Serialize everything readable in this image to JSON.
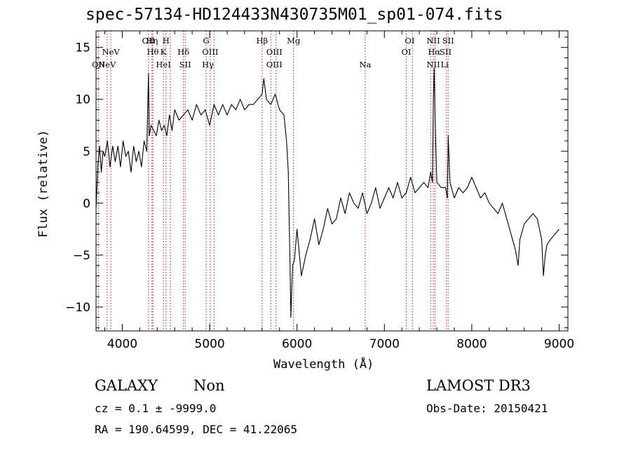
{
  "chart_data": {
    "type": "line",
    "title": "spec-57134-HD124433N430735M01_sp01-074.fits",
    "xlabel": "Wavelength (Å)",
    "ylabel": "Flux (relative)",
    "xlim": [
      3700,
      9100
    ],
    "ylim": [
      -12.3,
      16.6
    ],
    "xticks": [
      4000,
      5000,
      6000,
      7000,
      8000,
      9000
    ],
    "yticks": [
      -10,
      -5,
      0,
      5,
      10,
      15
    ],
    "grid": false,
    "series": [
      {
        "name": "spectrum",
        "color": "#000000",
        "x": [
          3700,
          3720,
          3740,
          3760,
          3780,
          3800,
          3830,
          3860,
          3890,
          3920,
          3950,
          3980,
          4010,
          4040,
          4070,
          4100,
          4130,
          4160,
          4190,
          4220,
          4250,
          4280,
          4300,
          4310,
          4330,
          4360,
          4390,
          4420,
          4450,
          4480,
          4510,
          4540,
          4570,
          4600,
          4650,
          4700,
          4750,
          4800,
          4850,
          4900,
          4950,
          5000,
          5050,
          5100,
          5150,
          5200,
          5250,
          5300,
          5350,
          5400,
          5450,
          5500,
          5550,
          5600,
          5620,
          5650,
          5700,
          5750,
          5800,
          5850,
          5880,
          5900,
          5910,
          5920,
          5930,
          5940,
          5950,
          5970,
          6000,
          6050,
          6100,
          6150,
          6200,
          6250,
          6300,
          6350,
          6400,
          6450,
          6500,
          6550,
          6600,
          6650,
          6700,
          6750,
          6800,
          6850,
          6900,
          6950,
          7000,
          7050,
          7100,
          7150,
          7200,
          7250,
          7300,
          7350,
          7400,
          7450,
          7500,
          7530,
          7550,
          7560,
          7570,
          7580,
          7600,
          7650,
          7700,
          7720,
          7730,
          7750,
          7800,
          7850,
          7900,
          7950,
          8000,
          8050,
          8100,
          8150,
          8200,
          8250,
          8300,
          8350,
          8400,
          8450,
          8500,
          8530,
          8550,
          8600,
          8650,
          8700,
          8750,
          8800,
          8820,
          8840,
          8860,
          8900,
          8950,
          9000
        ],
        "y": [
          -0.5,
          3.5,
          5.5,
          3.0,
          5.0,
          4.5,
          6.0,
          3.5,
          5.5,
          4.0,
          5.5,
          3.5,
          6.0,
          4.5,
          5.0,
          3.0,
          5.5,
          4.0,
          5.0,
          3.5,
          6.0,
          5.0,
          12.5,
          6.5,
          7.5,
          7.0,
          6.5,
          8.0,
          7.0,
          7.5,
          6.5,
          8.5,
          7.0,
          9.0,
          8.0,
          8.5,
          9.0,
          8.0,
          9.5,
          8.5,
          9.0,
          7.5,
          9.5,
          8.5,
          9.5,
          8.5,
          9.5,
          9.0,
          10.0,
          9.0,
          9.5,
          9.5,
          10.0,
          10.5,
          12.0,
          10.0,
          9.5,
          10.5,
          9.0,
          8.5,
          6.0,
          3.0,
          -1.5,
          -6.0,
          -11.0,
          -8.0,
          -6.0,
          -5.5,
          -2.5,
          -7.0,
          -5.0,
          -3.5,
          -1.5,
          -4.0,
          -2.5,
          -0.5,
          -2.0,
          -1.5,
          0.5,
          -1.0,
          1.0,
          0.0,
          -0.5,
          1.0,
          -1.0,
          0.0,
          1.5,
          -0.5,
          0.5,
          1.5,
          0.5,
          2.0,
          0.5,
          1.0,
          2.5,
          1.0,
          1.5,
          2.0,
          1.5,
          3.0,
          2.0,
          10.0,
          13.0,
          8.0,
          2.0,
          1.5,
          1.5,
          0.5,
          6.5,
          2.0,
          0.5,
          1.5,
          1.0,
          1.5,
          2.5,
          1.5,
          0.5,
          1.0,
          0.0,
          -0.5,
          -1.0,
          0.0,
          -1.5,
          -3.0,
          -4.5,
          -6.0,
          -3.5,
          -2.0,
          -1.5,
          -1.0,
          -1.5,
          -3.5,
          -7.0,
          -5.0,
          -4.0,
          -3.5,
          -3.0,
          -2.5
        ]
      }
    ],
    "lines": [
      {
        "name": "NeV",
        "x": 3826,
        "row": 3
      },
      {
        "name": "NeV",
        "x": 3869,
        "row": 2
      },
      {
        "name": "OII",
        "x": 3727,
        "row": 3
      },
      {
        "name": "OII",
        "x": 4300,
        "row": 1
      },
      {
        "name": "Hη",
        "x": 4340,
        "row": 1
      },
      {
        "name": "Hθ",
        "x": 4350,
        "row": 2
      },
      {
        "name": "HeI",
        "x": 4471,
        "row": 3
      },
      {
        "name": "H",
        "x": 4500,
        "row": 1
      },
      {
        "name": "K",
        "x": 4470,
        "row": 2
      },
      {
        "name": "Hδ",
        "x": 4700,
        "row": 2
      },
      {
        "name": "SII",
        "x": 4720,
        "row": 3
      },
      {
        "name": "G",
        "x": 4960,
        "row": 1
      },
      {
        "name": "OIII",
        "x": 5007,
        "row": 2
      },
      {
        "name": "Hγ",
        "x": 4980,
        "row": 3
      },
      {
        "name": "Hβ",
        "x": 5600,
        "row": 1
      },
      {
        "name": "OIII",
        "x": 5740,
        "row": 2
      },
      {
        "name": "OIII",
        "x": 5740,
        "row": 3
      },
      {
        "name": "Mg",
        "x": 5960,
        "row": 1
      },
      {
        "name": "Na",
        "x": 6780,
        "row": 3
      },
      {
        "name": "OI",
        "x": 7290,
        "row": 1
      },
      {
        "name": "OI",
        "x": 7250,
        "row": 2
      },
      {
        "name": "NII",
        "x": 7560,
        "row": 1
      },
      {
        "name": "Hα",
        "x": 7570,
        "row": 2
      },
      {
        "name": "NII",
        "x": 7560,
        "row": 3
      },
      {
        "name": "SII",
        "x": 7730,
        "row": 1
      },
      {
        "name": "SII",
        "x": 7700,
        "row": 2
      },
      {
        "name": "Li",
        "x": 7690,
        "row": 3
      }
    ],
    "marker_x": [
      3727,
      3826,
      3869,
      4300,
      4340,
      4350,
      4471,
      4500,
      4550,
      4700,
      4720,
      4960,
      5007,
      5050,
      5600,
      5700,
      5760,
      5960,
      6780,
      7250,
      7320,
      7530,
      7560,
      7580,
      7710,
      7730
    ]
  },
  "footer": {
    "galaxy": "GALAXY",
    "class_value": "Non",
    "survey": "LAMOST DR3",
    "cz": "cz = 0.1 ± -9999.0",
    "obs_date": "Obs-Date: 20150421",
    "coords": "RA = 190.64599, DEC =  41.22065"
  }
}
